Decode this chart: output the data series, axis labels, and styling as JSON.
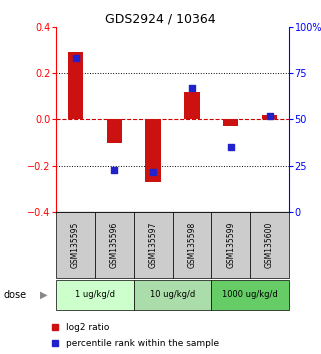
{
  "title": "GDS2924 / 10364",
  "samples": [
    "GSM135595",
    "GSM135596",
    "GSM135597",
    "GSM135598",
    "GSM135599",
    "GSM135600"
  ],
  "log2_ratio": [
    0.29,
    -0.1,
    -0.27,
    0.12,
    -0.03,
    0.02
  ],
  "percentile_rank": [
    83,
    23,
    22,
    67,
    35,
    52
  ],
  "ylim_left": [
    -0.4,
    0.4
  ],
  "ylim_right": [
    0,
    100
  ],
  "yticks_left": [
    -0.4,
    -0.2,
    0.0,
    0.2,
    0.4
  ],
  "yticks_right": [
    0,
    25,
    50,
    75,
    100
  ],
  "ytick_labels_right": [
    "0",
    "25",
    "50",
    "75",
    "100%"
  ],
  "doses": [
    {
      "label": "1 ug/kg/d",
      "cols": [
        0,
        1
      ],
      "color": "#ccffcc"
    },
    {
      "label": "10 ug/kg/d",
      "cols": [
        2,
        3
      ],
      "color": "#aaddaa"
    },
    {
      "label": "1000 ug/kg/d",
      "cols": [
        4,
        5
      ],
      "color": "#66cc66"
    }
  ],
  "bar_color": "#cc1111",
  "dot_color": "#2222cc",
  "zero_line_color": "#cc0000",
  "grid_color": "#000000",
  "sample_bg_color": "#cccccc",
  "dose_label": "dose",
  "legend_red_label": "log2 ratio",
  "legend_blue_label": "percentile rank within the sample",
  "bar_width": 0.4
}
